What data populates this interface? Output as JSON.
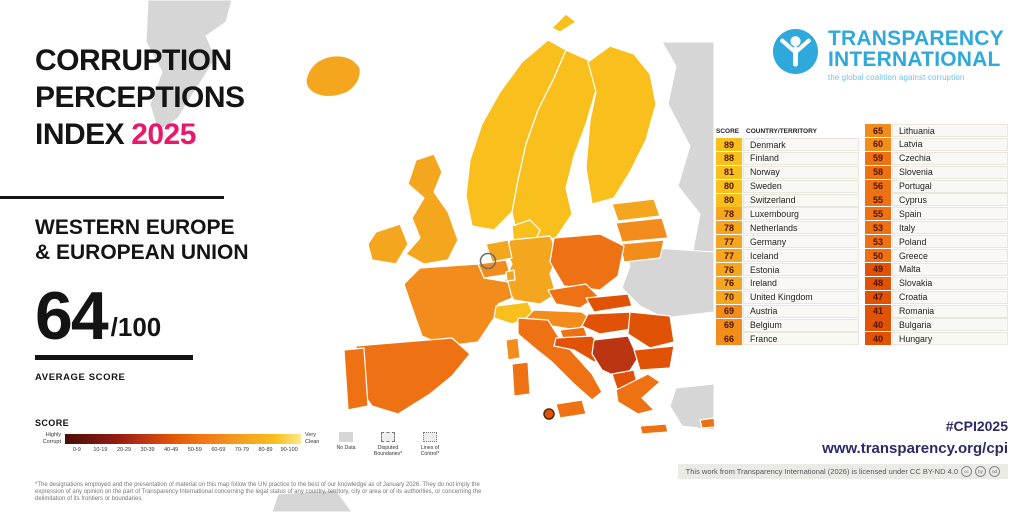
{
  "title": {
    "line1": "CORRUPTION",
    "line2": "PERCEPTIONS",
    "line3": "INDEX",
    "year": "2025"
  },
  "region": {
    "line1": "WESTERN EUROPE",
    "line2": "& EUROPEAN UNION"
  },
  "score_panel": {
    "value": "64",
    "denominator": "/100",
    "label": "AVERAGE SCORE"
  },
  "legend": {
    "title": "SCORE",
    "low_label_1": "Highly",
    "low_label_2": "Corrupt",
    "high_label_1": "Very",
    "high_label_2": "Clean",
    "ranges": [
      "0-9",
      "10-19",
      "20-29",
      "30-39",
      "40-49",
      "50-59",
      "60-69",
      "70-79",
      "80-89",
      "90-100"
    ],
    "items": [
      {
        "line1": "No Data",
        "line2": ""
      },
      {
        "line1": "Disputed",
        "line2": "Boundaries*"
      },
      {
        "line1": "Lines of",
        "line2": "Control*"
      }
    ],
    "band_colors": {
      "0": "#4a0d08",
      "10": "#6f150e",
      "20": "#941c12",
      "30": "#bc3513",
      "40": "#e05206",
      "50": "#ee7213",
      "60": "#f28c1c",
      "70": "#f5a61f",
      "80": "#f8bf1d",
      "90": "#fde98c",
      "no_data": "#d6d6d6"
    }
  },
  "logo": {
    "line1": "TRANSPARENCY",
    "line2": "INTERNATIONAL",
    "tagline": "the global coalition against corruption"
  },
  "table": {
    "score_header": "SCORE",
    "country_header": "COUNTRY/TERRITORY",
    "rows_per_column": [
      15,
      16
    ]
  },
  "footer": {
    "hashtag": "#CPI2025",
    "url": "www.transparency.org/cpi",
    "license": "This work from Transparency International (2026) is licensed under CC BY-ND 4.0",
    "cc_icons": [
      "CC",
      "BY",
      "ND"
    ],
    "disclaimer": "*The designations employed and the presentation of material on this map follow the UN practice to the best of our knowledge as of January 2026. They do not imply the expression of any opinion on the part of Transparency International concerning the legal status of any country, territory, city or area or of its authorities, or concerning the delimitation of its frontiers or boundaries."
  },
  "chart_data": {
    "type": "heatmap",
    "subtype": "choropleth",
    "title": "Corruption Perceptions Index 2025",
    "region": "Western Europe & European Union",
    "average_score": 64,
    "score_range": [
      0,
      100
    ],
    "legend_bands": [
      "0-9",
      "10-19",
      "20-29",
      "30-39",
      "40-49",
      "50-59",
      "60-69",
      "70-79",
      "80-89",
      "90-100"
    ],
    "series": [
      {
        "country": "Denmark",
        "score": 89
      },
      {
        "country": "Finland",
        "score": 88
      },
      {
        "country": "Norway",
        "score": 81
      },
      {
        "country": "Sweden",
        "score": 80
      },
      {
        "country": "Switzerland",
        "score": 80
      },
      {
        "country": "Luxembourg",
        "score": 78
      },
      {
        "country": "Netherlands",
        "score": 78
      },
      {
        "country": "Germany",
        "score": 77
      },
      {
        "country": "Iceland",
        "score": 77
      },
      {
        "country": "Estonia",
        "score": 76
      },
      {
        "country": "Ireland",
        "score": 76
      },
      {
        "country": "United Kingdom",
        "score": 70
      },
      {
        "country": "Austria",
        "score": 69
      },
      {
        "country": "Belgium",
        "score": 69
      },
      {
        "country": "France",
        "score": 66
      },
      {
        "country": "Lithuania",
        "score": 65
      },
      {
        "country": "Latvia",
        "score": 60
      },
      {
        "country": "Czechia",
        "score": 59
      },
      {
        "country": "Slovenia",
        "score": 58
      },
      {
        "country": "Portugal",
        "score": 56
      },
      {
        "country": "Cyprus",
        "score": 55
      },
      {
        "country": "Spain",
        "score": 55
      },
      {
        "country": "Italy",
        "score": 53
      },
      {
        "country": "Poland",
        "score": 53
      },
      {
        "country": "Greece",
        "score": 50
      },
      {
        "country": "Malta",
        "score": 49
      },
      {
        "country": "Slovakia",
        "score": 48
      },
      {
        "country": "Croatia",
        "score": 47
      },
      {
        "country": "Romania",
        "score": 41
      },
      {
        "country": "Bulgaria",
        "score": 40
      },
      {
        "country": "Hungary",
        "score": 40
      }
    ]
  }
}
